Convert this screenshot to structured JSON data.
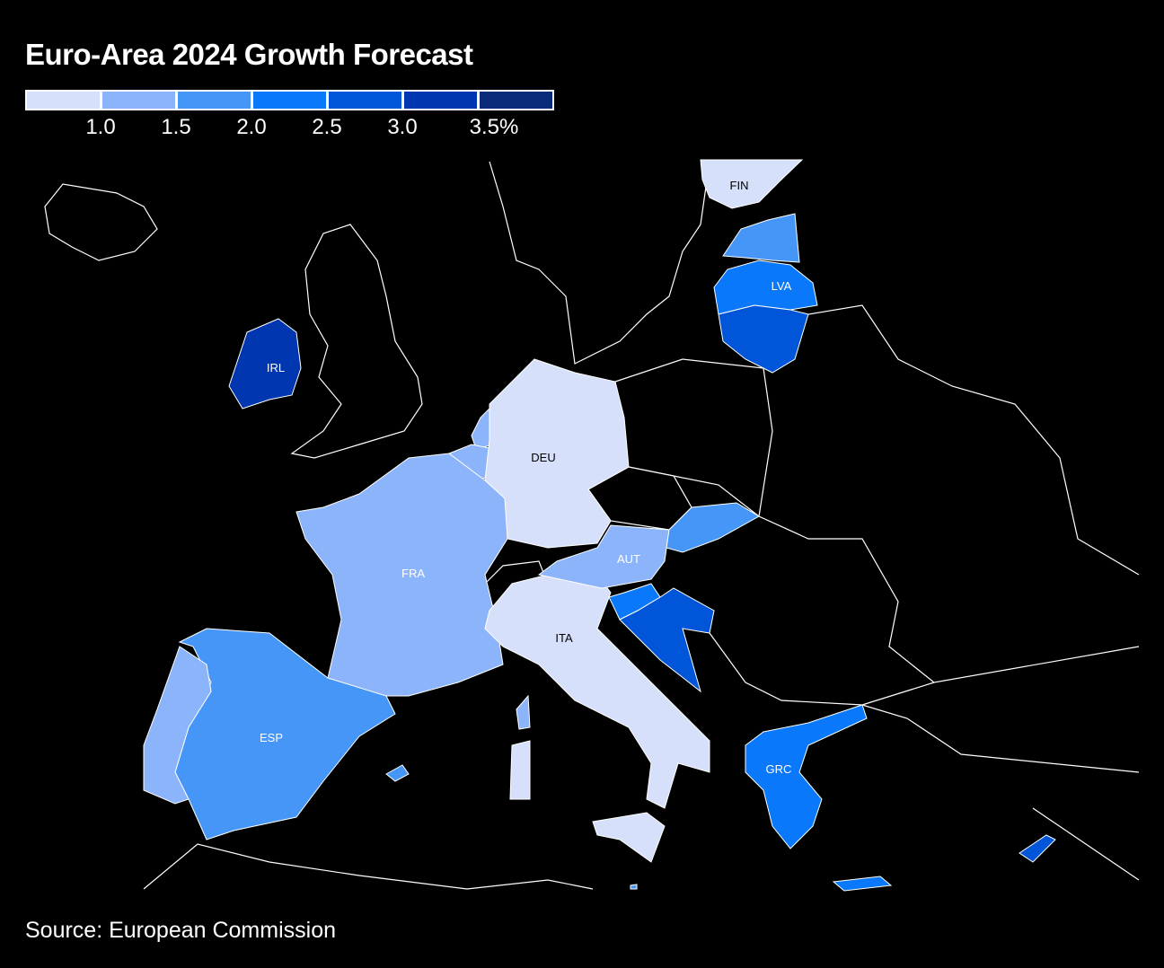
{
  "title": "Euro-Area 2024 Growth Forecast",
  "legend": {
    "colors": [
      "#d6e0fa",
      "#8cb4fa",
      "#4696f8",
      "#0a78fa",
      "#0055d8",
      "#0037b0",
      "#0a2a7a"
    ],
    "ticks": [
      "1.0",
      "1.5",
      "2.0",
      "2.5",
      "3.0",
      "3.5%"
    ]
  },
  "countries": {
    "FIN": {
      "label": "FIN",
      "bin": 0
    },
    "EST": {
      "label": "",
      "bin": 2
    },
    "LVA": {
      "label": "LVA",
      "bin": 3
    },
    "LTU": {
      "label": "",
      "bin": 4
    },
    "IRL": {
      "label": "IRL",
      "bin": 5
    },
    "NLD": {
      "label": "",
      "bin": 1
    },
    "BEL": {
      "label": "",
      "bin": 1
    },
    "DEU": {
      "label": "DEU",
      "bin": 0
    },
    "FRA": {
      "label": "FRA",
      "bin": 1
    },
    "ESP": {
      "label": "ESP",
      "bin": 2
    },
    "PRT": {
      "label": "",
      "bin": 1
    },
    "ITA": {
      "label": "ITA",
      "bin": 0
    },
    "AUT": {
      "label": "AUT",
      "bin": 1
    },
    "SVK": {
      "label": "",
      "bin": 2
    },
    "SVN": {
      "label": "",
      "bin": 3
    },
    "HRV": {
      "label": "",
      "bin": 4
    },
    "GRC": {
      "label": "GRC",
      "bin": 3
    },
    "CYP": {
      "label": "",
      "bin": 4
    },
    "MLT": {
      "label": "",
      "bin": 2
    }
  },
  "source": "Source: European Commission"
}
